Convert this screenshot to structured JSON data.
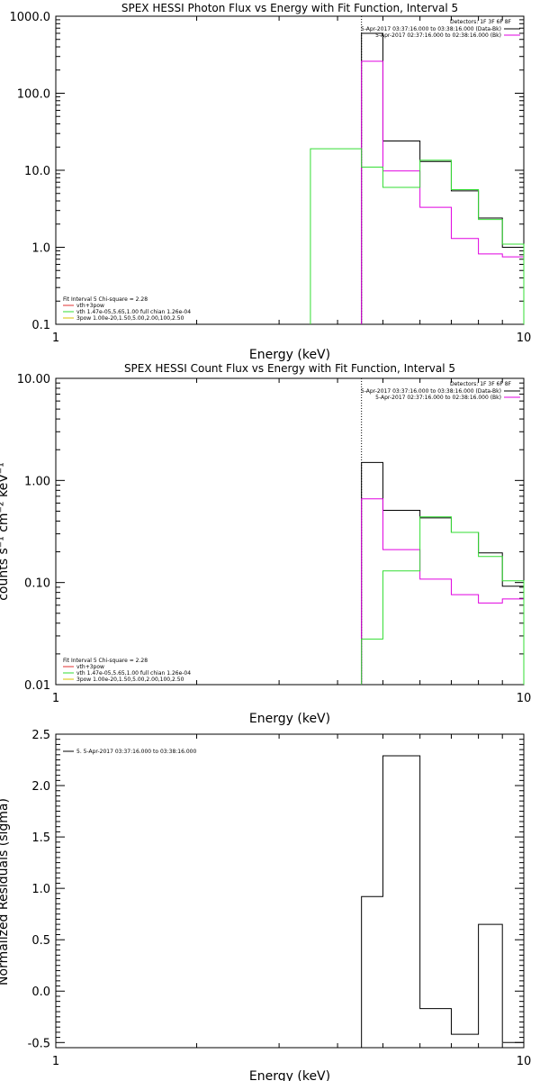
{
  "colors": {
    "black": "#000000",
    "magenta": "#e000e0",
    "green": "#33dd33",
    "red": "#e03030",
    "yellow": "#d8c000"
  },
  "chart_data": [
    {
      "type": "line",
      "title": "SPEX HESSI Photon Flux vs Energy with Fit Function, Interval 5",
      "xlabel": "Energy (keV)",
      "ylabel": "",
      "xscale": "log",
      "yscale": "log",
      "xlim": [
        1,
        10
      ],
      "ylim": [
        0.1,
        1000
      ],
      "xticks": [
        "1",
        "10"
      ],
      "yticks": [
        "0.1",
        "1.0",
        "10.0",
        "100.0",
        "1000.0"
      ],
      "vline": 4.5,
      "legend_tr": {
        "header": "Detectors: 1F 3F 6F 8F",
        "entries": [
          {
            "label": "5-Apr-2017 03:37:16.000 to 03:38:16.000 (Data-Bk)",
            "color": "#000000"
          },
          {
            "label": "5-Apr-2017 02:37:16.000 to 02:38:16.000 (Bk)",
            "color": "#e000e0"
          }
        ]
      },
      "legend_bl": {
        "header": "Fit Interval 5   Chi-square = 2.28",
        "entries": [
          {
            "label": "vth+3pow",
            "color": "#e03030"
          },
          {
            "label": "vth 1.47e-05,5.65,1.00  full chian 1.26e-04",
            "color": "#33dd33"
          },
          {
            "label": "3pow 1.00e-20,1.50,5.00,2.00,100,2.50",
            "color": "#d8c000"
          }
        ]
      },
      "series": [
        {
          "color": "#000000",
          "edges": [
            4.5,
            5,
            6,
            7,
            8,
            9,
            10
          ],
          "values": [
            600,
            24,
            13,
            5.4,
            2.4,
            1.0
          ]
        },
        {
          "color": "#e000e0",
          "edges": [
            4.5,
            5,
            6,
            7,
            8,
            9,
            10
          ],
          "values": [
            260,
            9.8,
            3.3,
            1.3,
            0.82,
            0.75
          ]
        },
        {
          "color": "#33dd33",
          "edges": [
            3.5,
            4.5,
            5,
            6,
            7,
            8,
            9,
            10
          ],
          "values": [
            19,
            11,
            6.0,
            13.5,
            5.6,
            2.3,
            1.1
          ]
        }
      ]
    },
    {
      "type": "line",
      "title": "SPEX HESSI Count Flux vs Energy with Fit Function, Interval 5",
      "xlabel": "Energy (keV)",
      "ylabel": "counts s⁻¹ cm⁻² keV⁻¹",
      "xscale": "log",
      "yscale": "log",
      "xlim": [
        1,
        10
      ],
      "ylim": [
        0.01,
        10
      ],
      "xticks": [
        "1",
        "10"
      ],
      "yticks": [
        "0.01",
        "0.10",
        "1.00",
        "10.00"
      ],
      "vline": 4.5,
      "legend_tr": {
        "header": "Detectors: 1F 3F 6F 8F",
        "entries": [
          {
            "label": "5-Apr-2017 03:37:16.000 to 03:38:16.000 (Data-Bk)",
            "color": "#000000"
          },
          {
            "label": "5-Apr-2017 02:37:16.000 to 02:38:16.000 (Bk)",
            "color": "#e000e0"
          }
        ]
      },
      "legend_bl": {
        "header": "Fit Interval 5   Chi-square = 2.28",
        "entries": [
          {
            "label": "vth+3pow",
            "color": "#e03030"
          },
          {
            "label": "vth 1.47e-05,5.65,1.00  full chian 1.26e-04",
            "color": "#33dd33"
          },
          {
            "label": "3pow 1.00e-20,1.50,5.00,2.00,100,2.50",
            "color": "#d8c000"
          }
        ]
      },
      "series": [
        {
          "color": "#000000",
          "edges": [
            4.5,
            5,
            6,
            7,
            8,
            9,
            10
          ],
          "values": [
            1.5,
            0.51,
            0.43,
            0.31,
            0.195,
            0.092
          ]
        },
        {
          "color": "#e000e0",
          "edges": [
            4.5,
            5,
            6,
            7,
            8,
            9,
            10
          ],
          "values": [
            0.66,
            0.21,
            0.108,
            0.076,
            0.063,
            0.069
          ]
        },
        {
          "color": "#33dd33",
          "edges": [
            4.5,
            5,
            6,
            7,
            8,
            9,
            10
          ],
          "values": [
            0.028,
            0.13,
            0.44,
            0.31,
            0.18,
            0.104
          ]
        }
      ]
    },
    {
      "type": "line",
      "title": "",
      "xlabel": "Energy (keV)",
      "ylabel": "Normalized Residuals (sigma)",
      "xscale": "log",
      "yscale": "linear",
      "xlim": [
        1,
        10
      ],
      "ylim": [
        -0.55,
        2.5
      ],
      "xticks": [
        "1",
        "10"
      ],
      "yticks": [
        "-0.5",
        "0.0",
        "0.5",
        "1.0",
        "1.5",
        "2.0",
        "2.5"
      ],
      "legend_tl": {
        "entries": [
          {
            "label": "5.  5-Apr-2017 03:37:16.000 to 03:38:16.000",
            "color": "#000000"
          }
        ]
      },
      "series": [
        {
          "color": "#000000",
          "edges": [
            4.5,
            5,
            6,
            7,
            8,
            9,
            10
          ],
          "values": [
            0.92,
            2.29,
            -0.17,
            -0.42,
            0.65,
            -0.5
          ]
        }
      ]
    }
  ]
}
